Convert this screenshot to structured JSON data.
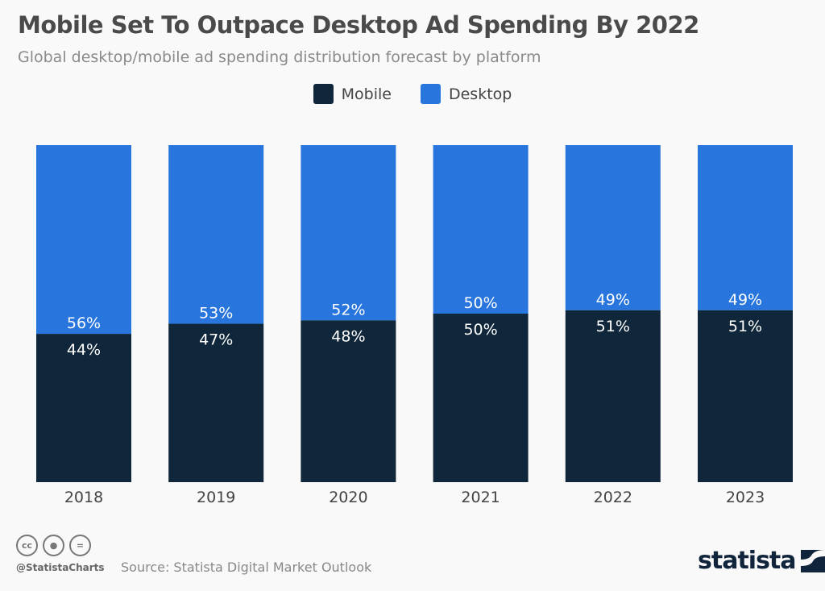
{
  "chart_data": {
    "type": "bar",
    "stacked": true,
    "title": "Mobile Set To Outpace Desktop Ad Spending By 2022",
    "subtitle": "Global desktop/mobile ad spending distribution forecast by platform",
    "categories": [
      "2018",
      "2019",
      "2020",
      "2021",
      "2022",
      "2023"
    ],
    "series": [
      {
        "name": "Mobile",
        "color": "#10273b",
        "values": [
          44,
          47,
          48,
          50,
          51,
          51
        ]
      },
      {
        "name": "Desktop",
        "color": "#2876dd",
        "values": [
          56,
          53,
          52,
          50,
          49,
          49
        ]
      }
    ],
    "ylim": [
      0,
      100
    ],
    "unit": "%",
    "grid": false,
    "legend_position": "top-center"
  },
  "footer": {
    "handle": "@StatistaCharts",
    "source": "Source: Statista Digital Market Outlook",
    "logo": "statista",
    "license_icons": [
      "cc-icon",
      "by-icon",
      "nd-icon"
    ]
  }
}
